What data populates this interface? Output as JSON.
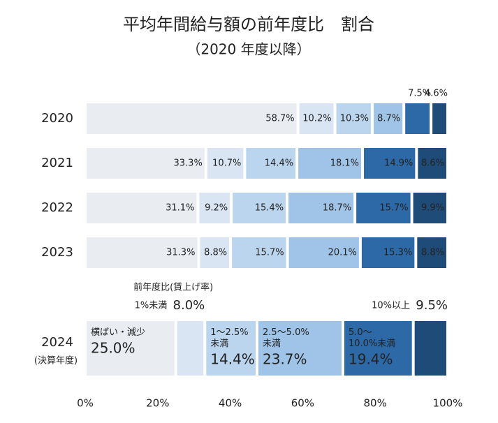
{
  "chart_data": {
    "type": "stacked-bar",
    "orientation": "horizontal",
    "title": "平均年間給与額の前年度比　割合",
    "subtitle": "（2020 年度以降）",
    "categories": [
      "2020",
      "2021",
      "2022",
      "2023",
      "2024"
    ],
    "category_note": "(決算年度)",
    "legend_title": "前年度比(賃上げ率)",
    "series": [
      {
        "name": "横ばい・減少",
        "color": "#e9edf1",
        "values": [
          58.7,
          33.3,
          31.1,
          31.3,
          25.0
        ],
        "value_labels": [
          "58.7%",
          "33.3%",
          "31.1%",
          "31.3%",
          "25.0%"
        ]
      },
      {
        "name": "1%未満",
        "color": "#dae5f3",
        "values": [
          10.2,
          10.7,
          9.2,
          8.8,
          8.0
        ],
        "value_labels": [
          "10.2%",
          "10.7%",
          "9.2%",
          "8.8%",
          "8.0%"
        ]
      },
      {
        "name": "1～2.5%\n未満",
        "color": "#bcd5ee",
        "values": [
          10.3,
          14.4,
          15.4,
          15.7,
          14.4
        ],
        "value_labels": [
          "10.3%",
          "14.4%",
          "15.4%",
          "15.7%",
          "14.4%"
        ]
      },
      {
        "name": "2.5～5.0%\n未満",
        "color": "#9fc4e7",
        "values": [
          8.7,
          18.1,
          18.7,
          20.1,
          23.7
        ],
        "value_labels": [
          "8.7%",
          "18.1%",
          "18.7%",
          "20.1%",
          "23.7%"
        ]
      },
      {
        "name": "5.0～\n10.0%未満",
        "color": "#2d69a6",
        "values": [
          7.5,
          14.9,
          15.7,
          15.3,
          19.4
        ],
        "value_labels": [
          "7.5%",
          "14.9%",
          "15.7%",
          "15.3%",
          "19.4%"
        ]
      },
      {
        "name": "10%以上",
        "color": "#1f4b78",
        "values": [
          4.6,
          8.6,
          9.9,
          8.8,
          9.5
        ],
        "value_labels": [
          "4.6%",
          "8.6%",
          "9.9%",
          "8.8%",
          "9.5%"
        ]
      }
    ],
    "xlim": [
      0,
      100
    ],
    "xticks": [
      {
        "value": 0,
        "label": "0%"
      },
      {
        "value": 20,
        "label": "20%"
      },
      {
        "value": 40,
        "label": "40%"
      },
      {
        "value": 60,
        "label": "60%"
      },
      {
        "value": 80,
        "label": "80%"
      },
      {
        "value": 100,
        "label": "100%"
      }
    ]
  }
}
